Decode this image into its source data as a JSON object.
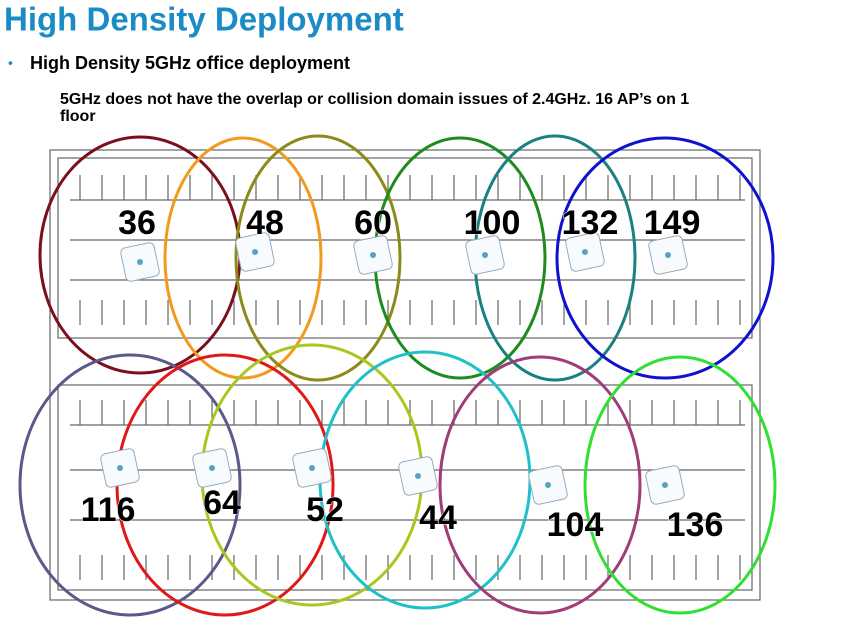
{
  "header": {
    "title": "High Density Deployment",
    "bullet": "High Density 5GHz office deployment",
    "note_lines": [
      "5GHz does not have the overlap or collision domain issues of 2.4GHz. 16 AP’s on 1",
      "floor"
    ]
  },
  "nodes": [
    {
      "label": "36"
    },
    {
      "label": "48"
    },
    {
      "label": "60"
    },
    {
      "label": "100"
    },
    {
      "label": "132"
    },
    {
      "label": "149"
    },
    {
      "label": "116"
    },
    {
      "label": "64"
    },
    {
      "label": "52"
    },
    {
      "label": "44"
    },
    {
      "label": "104"
    },
    {
      "label": "136"
    }
  ]
}
